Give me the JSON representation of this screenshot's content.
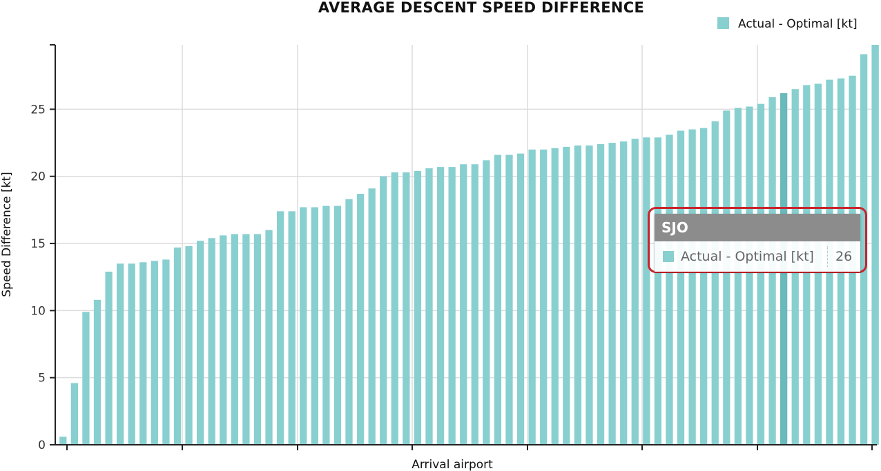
{
  "colors": {
    "bar": "#88cfd0",
    "bar_highlight": "#6ab9bb",
    "grid": "#dcdcdc",
    "axis": "#222222",
    "callout_border": "#c8252c",
    "tooltip_header": "#8c8c8c"
  },
  "tooltip": {
    "category": "SJO",
    "series_label": "Actual - Optimal [kt]",
    "value": "26"
  },
  "chart_data": {
    "type": "bar",
    "title": "AVERAGE DESCENT SPEED DIFFERENCE",
    "xlabel": "Arrival airport",
    "ylabel": "Speed Difference [kt]",
    "ylim": [
      0,
      29.8
    ],
    "yticks": [
      0,
      5,
      10,
      15,
      20,
      25
    ],
    "grid": true,
    "legend_position": "top-right",
    "highlight_index": 63,
    "series": [
      {
        "name": "Actual - Optimal [kt]",
        "values": [
          0.6,
          4.6,
          9.9,
          10.8,
          12.9,
          13.5,
          13.5,
          13.6,
          13.7,
          13.8,
          14.7,
          14.8,
          15.2,
          15.4,
          15.6,
          15.7,
          15.7,
          15.7,
          16.0,
          17.4,
          17.4,
          17.7,
          17.7,
          17.8,
          17.8,
          18.3,
          18.7,
          19.1,
          20.0,
          20.3,
          20.3,
          20.4,
          20.6,
          20.7,
          20.7,
          20.9,
          20.9,
          21.2,
          21.6,
          21.6,
          21.7,
          22.0,
          22.0,
          22.1,
          22.2,
          22.3,
          22.3,
          22.4,
          22.5,
          22.6,
          22.8,
          22.9,
          22.9,
          23.1,
          23.4,
          23.5,
          23.6,
          24.1,
          24.9,
          25.1,
          25.2,
          25.4,
          25.9,
          26.2,
          26.5,
          26.8,
          26.9,
          27.2,
          27.3,
          27.5,
          29.1,
          29.8
        ]
      }
    ]
  }
}
